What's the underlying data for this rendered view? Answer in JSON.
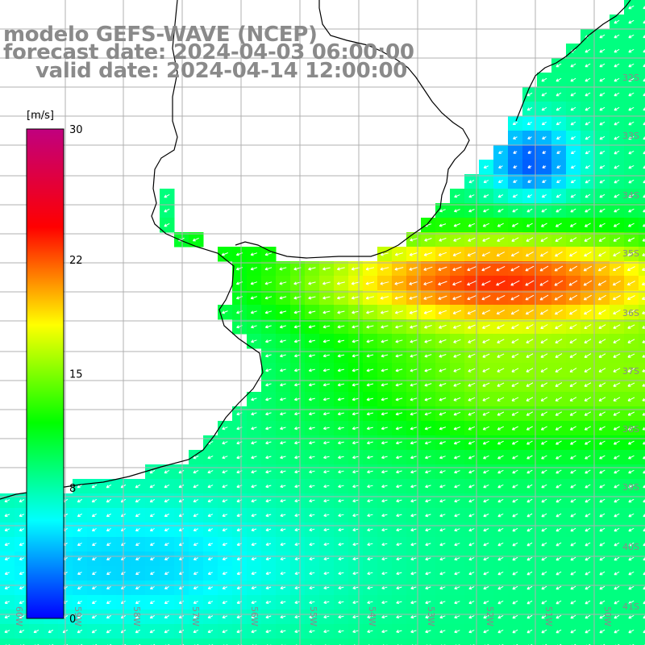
{
  "title": {
    "line1": "modelo GEFS-WAVE (NCEP)",
    "line2": "forecast date: 2024-04-03 06:00:00",
    "line3": "valid date: 2024-04-14 12:00:00"
  },
  "colorbar": {
    "unit": "[m/s]",
    "ticks": [
      "30",
      "22",
      "15",
      "8",
      "0"
    ],
    "tick_values": [
      30,
      22,
      15,
      8,
      0
    ],
    "min": 0,
    "max": 30,
    "colors": [
      "#0000ff",
      "#00ffff",
      "#00ff00",
      "#ffff00",
      "#ff0000",
      "#c0007f"
    ]
  },
  "map": {
    "lat_labels": [
      "32S",
      "33S",
      "34S",
      "35S",
      "36S",
      "37S",
      "38S",
      "39S",
      "40S",
      "41S"
    ],
    "lon_labels": [
      "60W",
      "59W",
      "58W",
      "57W",
      "56W",
      "55W",
      "54W",
      "53W",
      "52W",
      "51W",
      "50W"
    ],
    "land_color": "#ffffff",
    "grid_color": "#b0b0b0",
    "arrow_color": "#ffffff"
  }
}
